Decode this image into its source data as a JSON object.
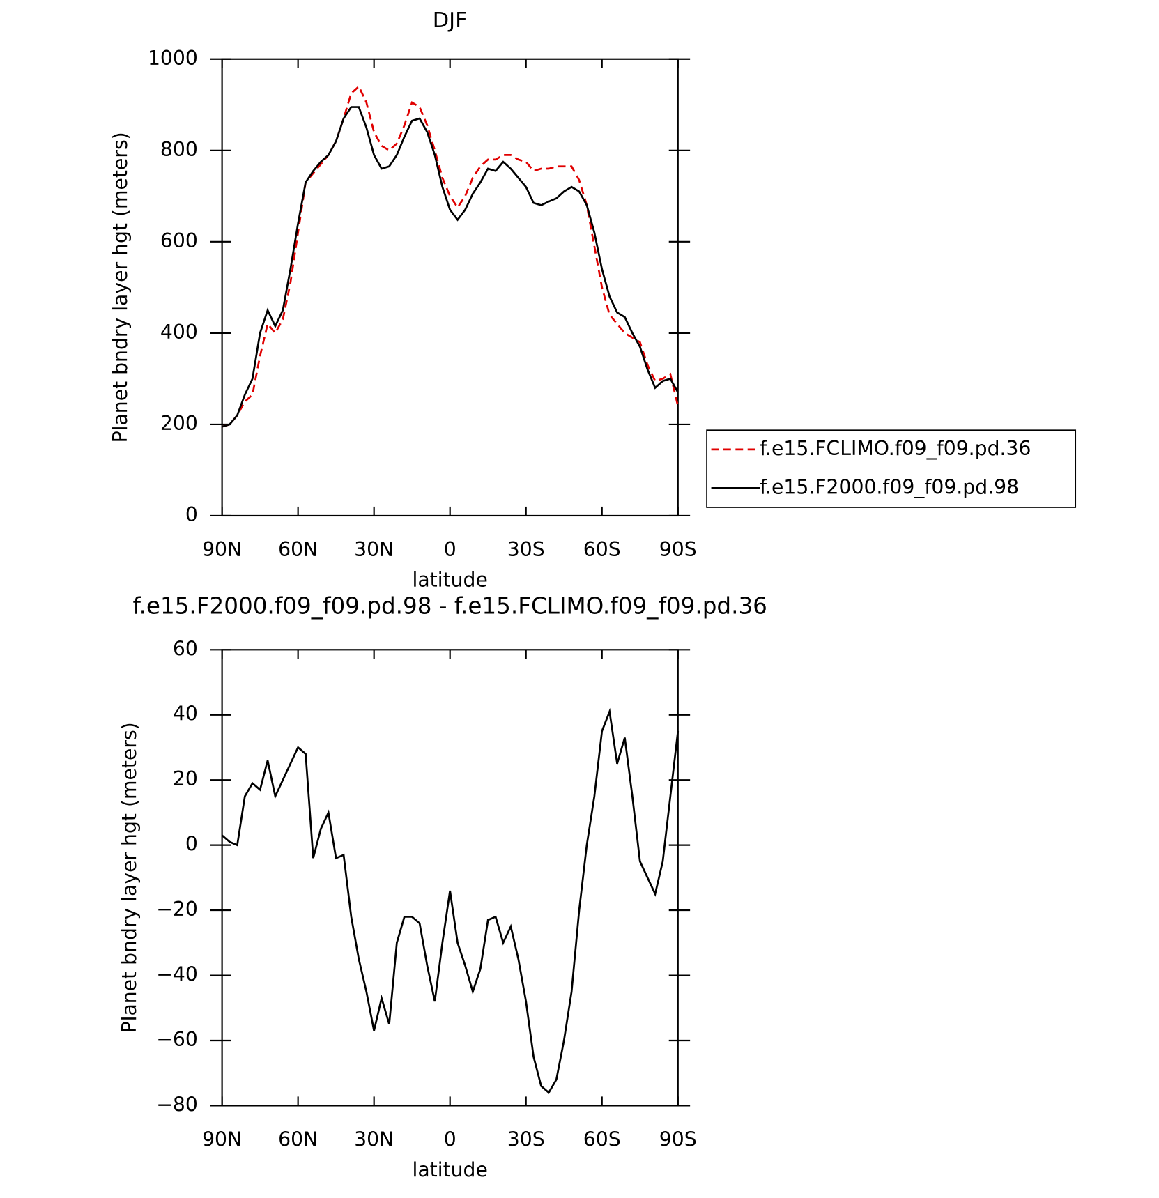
{
  "chart_data": [
    {
      "type": "line",
      "title": "DJF",
      "xlabel": "latitude",
      "ylabel": "Planet bndry layer hgt (meters)",
      "x": [
        90,
        87,
        84,
        81,
        78,
        75,
        72,
        69,
        66,
        63,
        60,
        57,
        54,
        51,
        48,
        45,
        42,
        39,
        36,
        33,
        30,
        27,
        24,
        21,
        18,
        15,
        12,
        9,
        6,
        3,
        0,
        -3,
        -6,
        -9,
        -12,
        -15,
        -18,
        -21,
        -24,
        -27,
        -30,
        -33,
        -36,
        -39,
        -42,
        -45,
        -48,
        -51,
        -54,
        -57,
        -60,
        -63,
        -66,
        -69,
        -72,
        -75,
        -78,
        -81,
        -84,
        -87,
        -90
      ],
      "xlim": [
        90,
        -90
      ],
      "xticks": [
        {
          "value": 90,
          "label": "90N"
        },
        {
          "value": 60,
          "label": "60N"
        },
        {
          "value": 30,
          "label": "30N"
        },
        0,
        {
          "value": -30,
          "label": "30S"
        },
        {
          "value": -60,
          "label": "60S"
        },
        {
          "value": -90,
          "label": "90S"
        }
      ],
      "ylim": [
        0,
        1000
      ],
      "yticks": [
        0,
        200,
        400,
        600,
        800,
        1000
      ],
      "series": [
        {
          "name": "f.e15.FCLIMO.f09_f09.pd.36",
          "color": "#e00000",
          "dashed": true,
          "values": [
            195,
            200,
            220,
            250,
            265,
            350,
            420,
            400,
            430,
            510,
            620,
            730,
            750,
            770,
            790,
            820,
            870,
            925,
            940,
            905,
            840,
            810,
            800,
            815,
            855,
            905,
            895,
            855,
            800,
            740,
            700,
            675,
            700,
            740,
            765,
            780,
            780,
            790,
            790,
            780,
            775,
            755,
            760,
            760,
            765,
            765,
            765,
            735,
            680,
            590,
            500,
            440,
            420,
            400,
            390,
            380,
            330,
            295,
            300,
            310,
            240
          ]
        },
        {
          "name": "f.e15.F2000.f09_f09.pd.98",
          "color": "#000000",
          "dashed": false,
          "values": [
            195,
            200,
            220,
            265,
            300,
            400,
            450,
            415,
            450,
            540,
            640,
            730,
            755,
            775,
            790,
            820,
            870,
            895,
            895,
            850,
            790,
            760,
            765,
            790,
            830,
            865,
            870,
            840,
            790,
            720,
            670,
            648,
            670,
            705,
            730,
            760,
            755,
            775,
            760,
            740,
            720,
            685,
            680,
            688,
            695,
            710,
            720,
            710,
            680,
            620,
            540,
            480,
            445,
            435,
            400,
            370,
            320,
            280,
            295,
            300,
            270
          ]
        }
      ]
    },
    {
      "type": "line",
      "title": "f.e15.F2000.f09_f09.pd.98 - f.e15.FCLIMO.f09_f09.pd.36",
      "xlabel": "latitude",
      "ylabel": "Planet bndry layer hgt (meters)",
      "x": [
        90,
        87,
        84,
        81,
        78,
        75,
        72,
        69,
        66,
        63,
        60,
        57,
        54,
        51,
        48,
        45,
        42,
        39,
        36,
        33,
        30,
        27,
        24,
        21,
        18,
        15,
        12,
        9,
        6,
        3,
        0,
        -3,
        -6,
        -9,
        -12,
        -15,
        -18,
        -21,
        -24,
        -27,
        -30,
        -33,
        -36,
        -39,
        -42,
        -45,
        -48,
        -51,
        -54,
        -57,
        -60,
        -63,
        -66,
        -69,
        -72,
        -75,
        -78,
        -81,
        -84,
        -87,
        -90
      ],
      "xlim": [
        90,
        -90
      ],
      "xticks": [
        {
          "value": 90,
          "label": "90N"
        },
        {
          "value": 60,
          "label": "60N"
        },
        {
          "value": 30,
          "label": "30N"
        },
        0,
        {
          "value": -30,
          "label": "30S"
        },
        {
          "value": -60,
          "label": "60S"
        },
        {
          "value": -90,
          "label": "90S"
        }
      ],
      "ylim": [
        -80,
        60
      ],
      "yticks": [
        {
          "value": -80,
          "label": "−80"
        },
        {
          "value": -60,
          "label": "−60"
        },
        {
          "value": -40,
          "label": "−40"
        },
        {
          "value": -20,
          "label": "−20"
        },
        0,
        20,
        40,
        60
      ],
      "series": [
        {
          "color": "#000000",
          "dashed": false,
          "values": [
            3,
            1,
            0,
            15,
            19,
            17,
            26,
            15,
            20,
            25,
            30,
            28,
            -4,
            5,
            10,
            -4,
            -3,
            -22,
            -35,
            -45,
            -57,
            -47,
            -55,
            -30,
            -22,
            -22,
            -24,
            -37,
            -48,
            -30,
            -14,
            -30,
            -37,
            -45,
            -38,
            -23,
            -22,
            -30,
            -25,
            -35,
            -48,
            -65,
            -74,
            -76,
            -72,
            -60,
            -45,
            -20,
            0,
            15,
            35,
            41,
            25,
            33,
            15,
            -5,
            -10,
            -15,
            -5,
            15,
            35
          ]
        }
      ]
    }
  ]
}
